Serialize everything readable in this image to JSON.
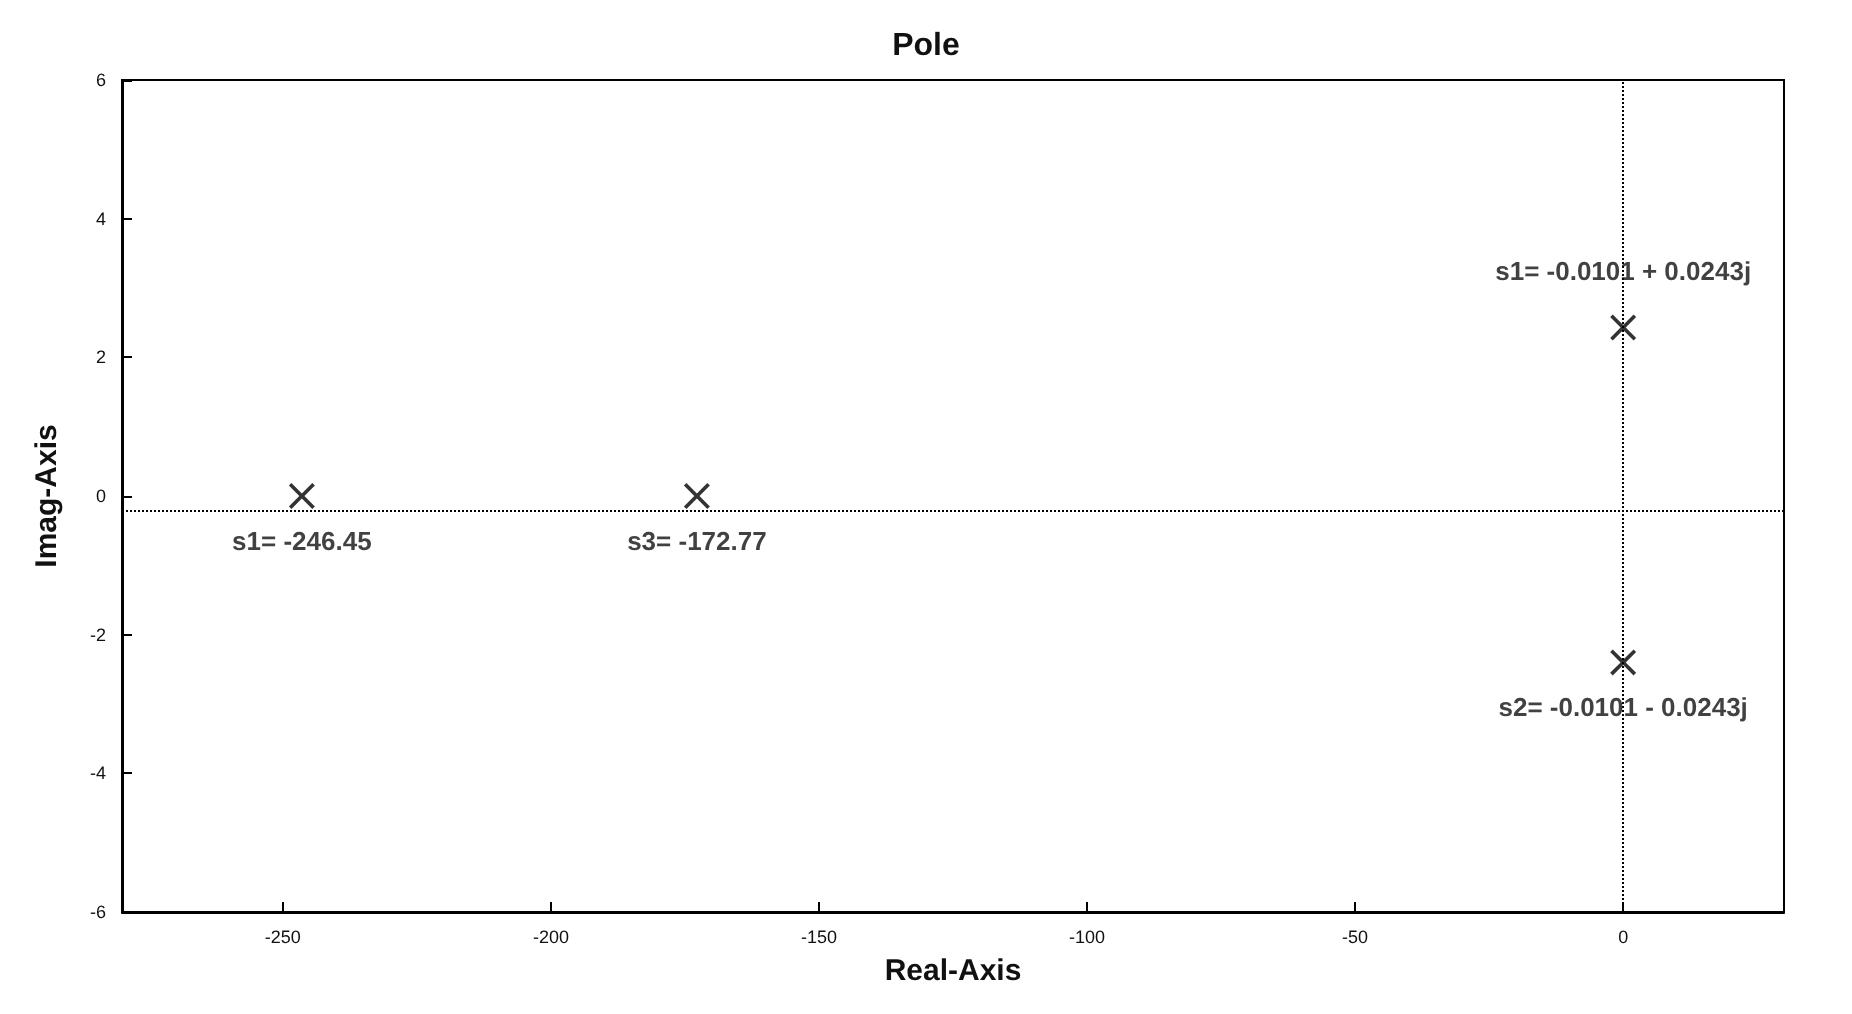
{
  "chart_data": {
    "type": "scatter",
    "title": "Pole",
    "xlabel": "Real-Axis",
    "ylabel": "Imag-Axis",
    "x": [
      -246.45,
      -172.77,
      0,
      0
    ],
    "series": [
      {
        "color": "#000000",
        "values": [
          0,
          0,
          2.43,
          -2.4
        ]
      }
    ],
    "marker": "cross",
    "grid": false,
    "xlim": [
      -280,
      30
    ],
    "xticks": [
      -250,
      -200,
      -150,
      -100,
      -50,
      0
    ],
    "ylim": [
      -6,
      6
    ],
    "yticks": [
      -6,
      -4,
      -2,
      0,
      2,
      4,
      6
    ],
    "ref_lines": [
      {
        "axis": "y",
        "value": -0.2,
        "line_style": "dotted",
        "color": "#000000"
      },
      {
        "axis": "x",
        "value": 0,
        "line_style": "dotted",
        "color": "#000000"
      }
    ],
    "annotations": [
      {
        "text": "s1= -246.45",
        "x": -246.45,
        "y": 0
      },
      {
        "text": "s3= -172.77",
        "x": -172.77,
        "y": 0
      },
      {
        "text": "s1= -0.0101 + 0.0243j",
        "x": 0,
        "y": 2.43
      },
      {
        "text": "s2= -0.0101 - 0.0243j",
        "x": 0,
        "y": -2.4
      }
    ]
  }
}
